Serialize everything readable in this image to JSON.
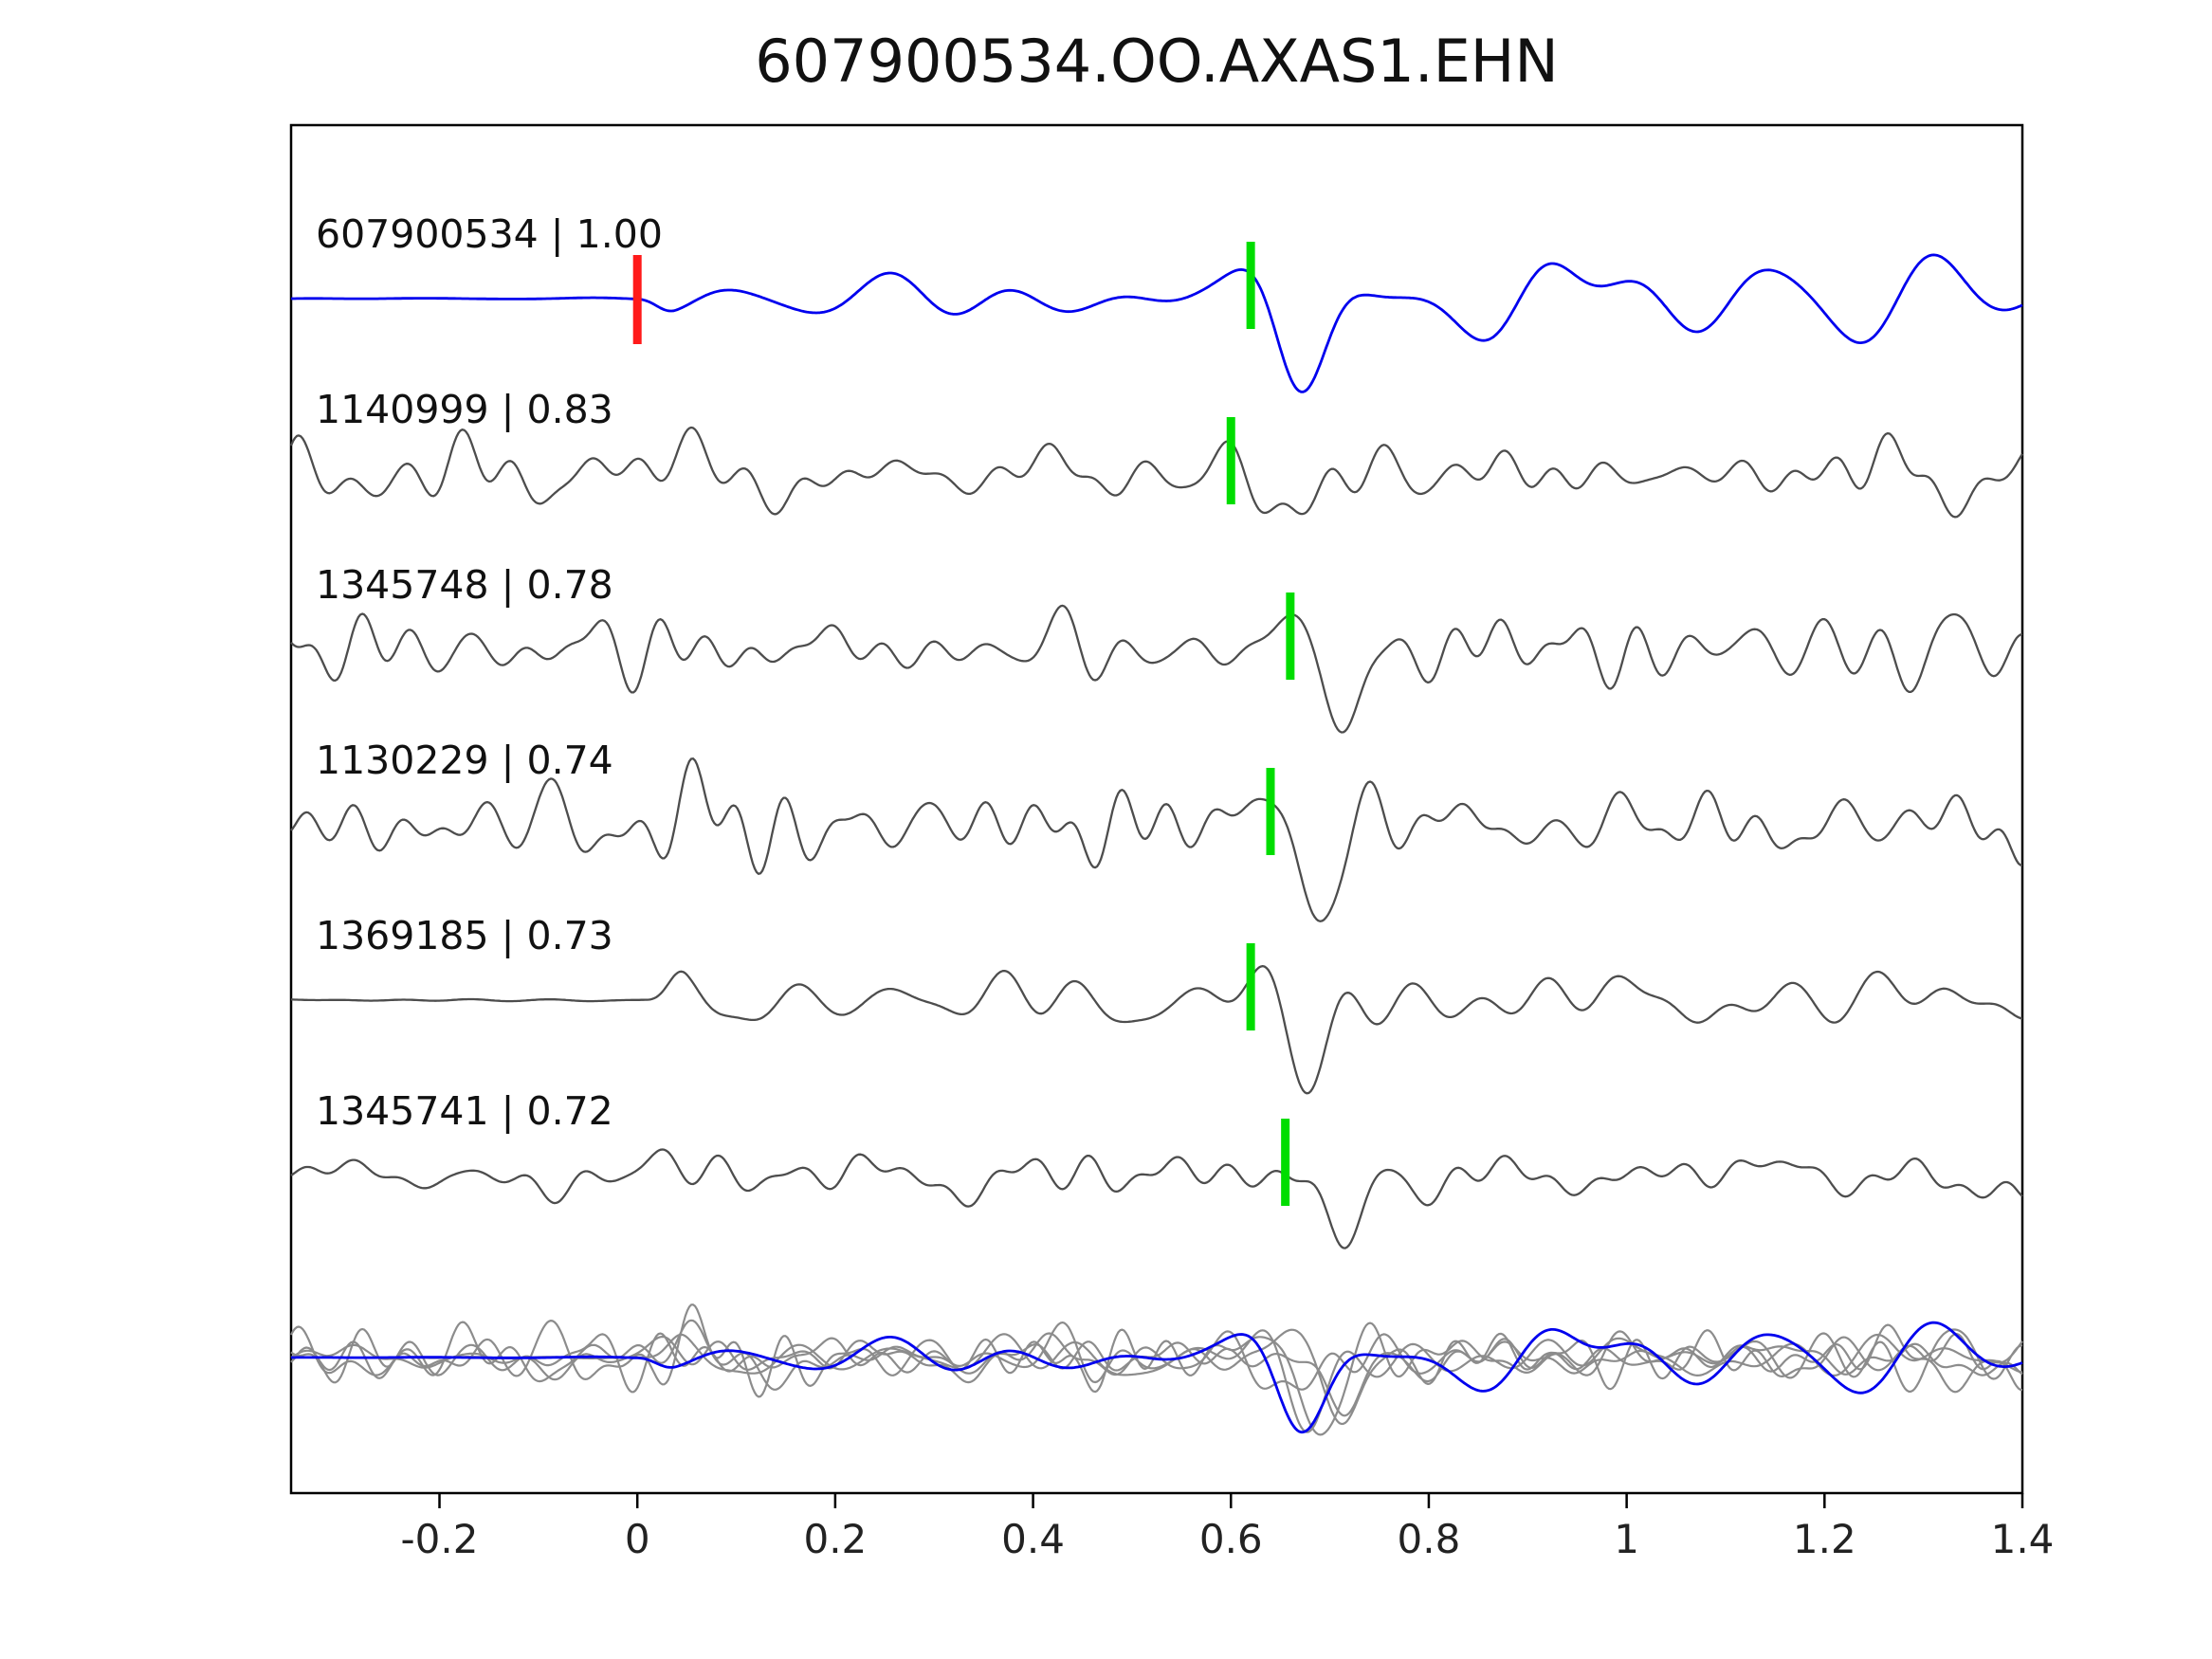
{
  "title": "607900534.OO.AXAS1.EHN",
  "chart_data": {
    "type": "line",
    "title": "607900534.OO.AXAS1.EHN",
    "xlabel": "",
    "ylabel": "",
    "xlim": [
      -0.35,
      1.4
    ],
    "grid": false,
    "legend": "none",
    "xticks": {
      "values": [
        -0.2,
        0,
        0.2,
        0.4,
        0.6,
        0.8,
        1.0,
        1.2,
        1.4
      ],
      "labels": [
        "-0.2",
        "0",
        "0.2",
        "0.4",
        "0.6",
        "0.8",
        "1",
        "1.2",
        "1.4"
      ]
    },
    "colors": {
      "template_trace": "#0000ee",
      "match_trace": "#4d4d4d",
      "overlay_gray": "#8c8c8c",
      "pick_green": "#00dd00",
      "pick_red": "#ff1a1a",
      "axis": "#000000"
    },
    "description": "Template waveform 607900534 (blue, correlation 1.00, red pick at t=0) compared with five matched event waveforms (gray) labeled by event id and cross-correlation value; green bars mark arrival picks near t=0.6-0.66; bottom panel overlays all traces aligned, blue template on top of gray matches.",
    "traces": [
      {
        "label": "607900534 | 1.00",
        "id": "607900534",
        "correlation": 1.0,
        "pick": 0.62,
        "red_pick": 0.0,
        "seed": 11,
        "amp": 27,
        "arrival_amp": 95,
        "wf": 5.6,
        "fmin": 2.0,
        "fmax": 11.0,
        "quiet_until": 0.0,
        "post_boost": true,
        "coda": [
          {
            "t": 0.9,
            "a": 62,
            "f": 4.4
          },
          {
            "t": 1.1,
            "a": 34,
            "f": 5.0
          },
          {
            "t": 1.28,
            "a": 40,
            "f": 4.2
          }
        ]
      },
      {
        "label": "1140999 | 0.83",
        "id": "1140999",
        "correlation": 0.83,
        "pick": 0.6,
        "seed": 22,
        "amp": 50,
        "arrival_amp": 62,
        "wf": 6.5,
        "fmin": 2.5,
        "fmax": 26.0,
        "coda": [
          {
            "t": 0.095,
            "a": -72,
            "f": 7.0
          }
        ]
      },
      {
        "label": "1345748 | 0.78",
        "id": "1345748",
        "correlation": 0.78,
        "pick": 0.66,
        "seed": 33,
        "amp": 46,
        "arrival_amp": 80,
        "wf": 6.8,
        "fmin": 2.5,
        "fmax": 26.0
      },
      {
        "label": "1130229 | 0.74",
        "id": "1130229",
        "correlation": 0.74,
        "pick": 0.64,
        "seed": 44,
        "amp": 50,
        "arrival_amp": 72,
        "wf": 6.2,
        "fmin": 2.5,
        "fmax": 24.0,
        "coda": [
          {
            "t": 0.1,
            "a": -55,
            "f": 8.0
          }
        ]
      },
      {
        "label": "1369185 | 0.73",
        "id": "1369185",
        "correlation": 0.73,
        "pick": 0.62,
        "seed": 55,
        "amp": 44,
        "arrival_amp": 88,
        "wf": 5.8,
        "fmin": 2.0,
        "fmax": 20.0,
        "quiet_until": 0.01
      },
      {
        "label": "1345741 | 0.72",
        "id": "1345741",
        "correlation": 0.72,
        "pick": 0.655,
        "seed": 66,
        "amp": 38,
        "arrival_amp": 85,
        "wf": 5.6,
        "fmin": 2.0,
        "fmax": 22.0
      }
    ],
    "overlay": {
      "scale": 0.8,
      "includes": [
        "1140999",
        "1345748",
        "1130229",
        "1369185",
        "1345741",
        "607900534"
      ]
    }
  }
}
